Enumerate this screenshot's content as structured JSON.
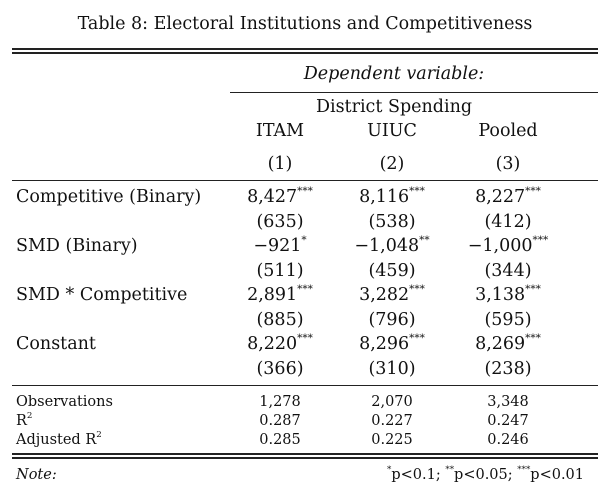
{
  "caption": "Table 8: Electoral Institutions and Competitiveness",
  "header": {
    "dependent_variable_label": "Dependent variable:",
    "dependent_variable": "District Spending",
    "columns": [
      {
        "name": "ITAM",
        "number": "(1)"
      },
      {
        "name": "UIUC",
        "number": "(2)"
      },
      {
        "name": "Pooled",
        "number": "(3)"
      }
    ]
  },
  "rows": [
    {
      "label": "Competitive (Binary)",
      "coef": [
        {
          "value": "8,427",
          "stars": "***"
        },
        {
          "value": "8,116",
          "stars": "***"
        },
        {
          "value": "8,227",
          "stars": "***"
        }
      ],
      "se": [
        "(635)",
        "(538)",
        "(412)"
      ]
    },
    {
      "label": "SMD (Binary)",
      "coef": [
        {
          "value": "−921",
          "stars": "*"
        },
        {
          "value": "−1,048",
          "stars": "**"
        },
        {
          "value": "−1,000",
          "stars": "***"
        }
      ],
      "se": [
        "(511)",
        "(459)",
        "(344)"
      ]
    },
    {
      "label": "SMD * Competitive",
      "coef": [
        {
          "value": "2,891",
          "stars": "***"
        },
        {
          "value": "3,282",
          "stars": "***"
        },
        {
          "value": "3,138",
          "stars": "***"
        }
      ],
      "se": [
        "(885)",
        "(796)",
        "(595)"
      ]
    },
    {
      "label": "Constant",
      "coef": [
        {
          "value": "8,220",
          "stars": "***"
        },
        {
          "value": "8,296",
          "stars": "***"
        },
        {
          "value": "8,269",
          "stars": "***"
        }
      ],
      "se": [
        "(366)",
        "(310)",
        "(238)"
      ]
    }
  ],
  "stats": {
    "observations": {
      "label": "Observations",
      "values": [
        "1,278",
        "2,070",
        "3,348"
      ]
    },
    "r2": {
      "label": "R",
      "sup": "2",
      "values": [
        "0.287",
        "0.227",
        "0.247"
      ]
    },
    "adj_r2": {
      "label": "Adjusted R",
      "sup": "2",
      "values": [
        "0.285",
        "0.225",
        "0.246"
      ]
    }
  },
  "note": {
    "label": "Note:",
    "levels": [
      {
        "stars": "*",
        "text": "p<0.1; "
      },
      {
        "stars": "**",
        "text": "p<0.05; "
      },
      {
        "stars": "***",
        "text": "p<0.01"
      }
    ]
  }
}
